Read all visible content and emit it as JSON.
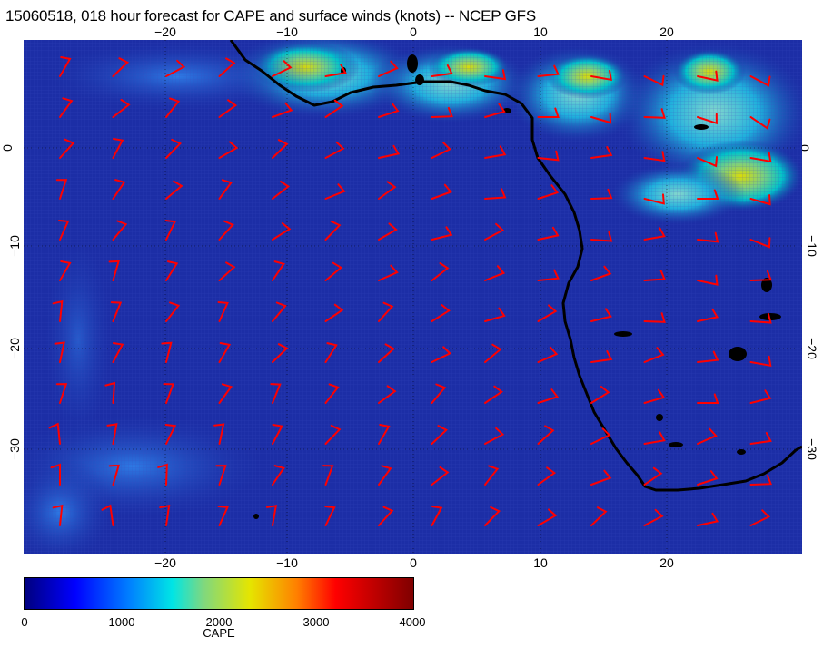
{
  "title": "15060518, 018 hour forecast for CAPE and surface winds (knots) -- NCEP GFS",
  "map": {
    "lon_range": [
      -30,
      31
    ],
    "lat_range": [
      -40,
      10
    ],
    "x_ticks": [
      {
        "label": "−20",
        "value": -20
      },
      {
        "label": "−10",
        "value": -10
      },
      {
        "label": "0",
        "value": 0
      },
      {
        "label": "10",
        "value": 10
      },
      {
        "label": "20",
        "value": 20
      }
    ],
    "y_ticks": [
      {
        "label": "0",
        "value": 0
      },
      {
        "label": "−10",
        "value": -10
      },
      {
        "label": "−20",
        "value": -20
      },
      {
        "label": "−30",
        "value": -30
      }
    ],
    "colors": {
      "ocean": "#1c2ea6",
      "wind_barb": "#ff0000",
      "coast": "#000000"
    }
  },
  "colorbar": {
    "title": "CAPE",
    "labels": [
      "0",
      "1000",
      "2000",
      "3000",
      "4000"
    ]
  }
}
